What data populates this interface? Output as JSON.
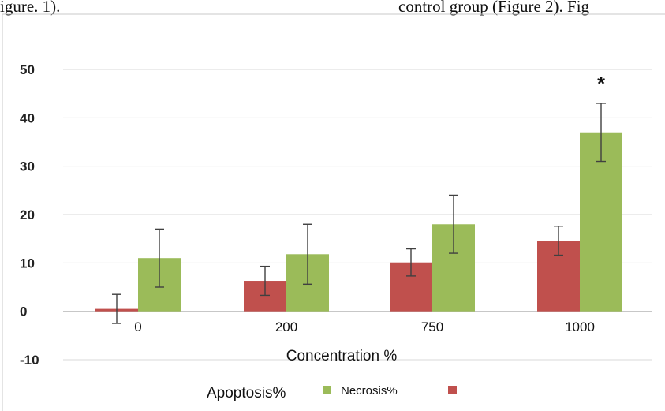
{
  "page": {
    "left_fragment": "igure. 1).",
    "right_fragment": "control group (Figure 2). Fig"
  },
  "colors": {
    "apoptosis": "#9bbb59",
    "necrosis": "#c0504d",
    "grid": "#d9d9d9",
    "error_bar": "#404040"
  },
  "chart_data": {
    "type": "bar",
    "categories": [
      "0",
      "200",
      "750",
      "1000"
    ],
    "xlabel": "Concentration %",
    "ylabel": "",
    "ylim": [
      -10,
      50
    ],
    "yticks": [
      "50",
      "40",
      "30",
      "20",
      "10",
      "0",
      "-10"
    ],
    "grid": true,
    "legend_position": "bottom",
    "legend_labels": [
      "Apoptosis%",
      "Necrosis%"
    ],
    "series": [
      {
        "name": "Necrosis%",
        "values": [
          0.5,
          6.3,
          10.1,
          14.6
        ],
        "errors": [
          3.0,
          3.0,
          2.8,
          3.0
        ]
      },
      {
        "name": "Apoptosis%",
        "values": [
          11.0,
          11.8,
          18.0,
          37.0
        ],
        "errors": [
          6.0,
          6.2,
          6.0,
          6.0
        ]
      }
    ],
    "annotations": [
      {
        "category": "1000",
        "text": "*"
      }
    ]
  }
}
